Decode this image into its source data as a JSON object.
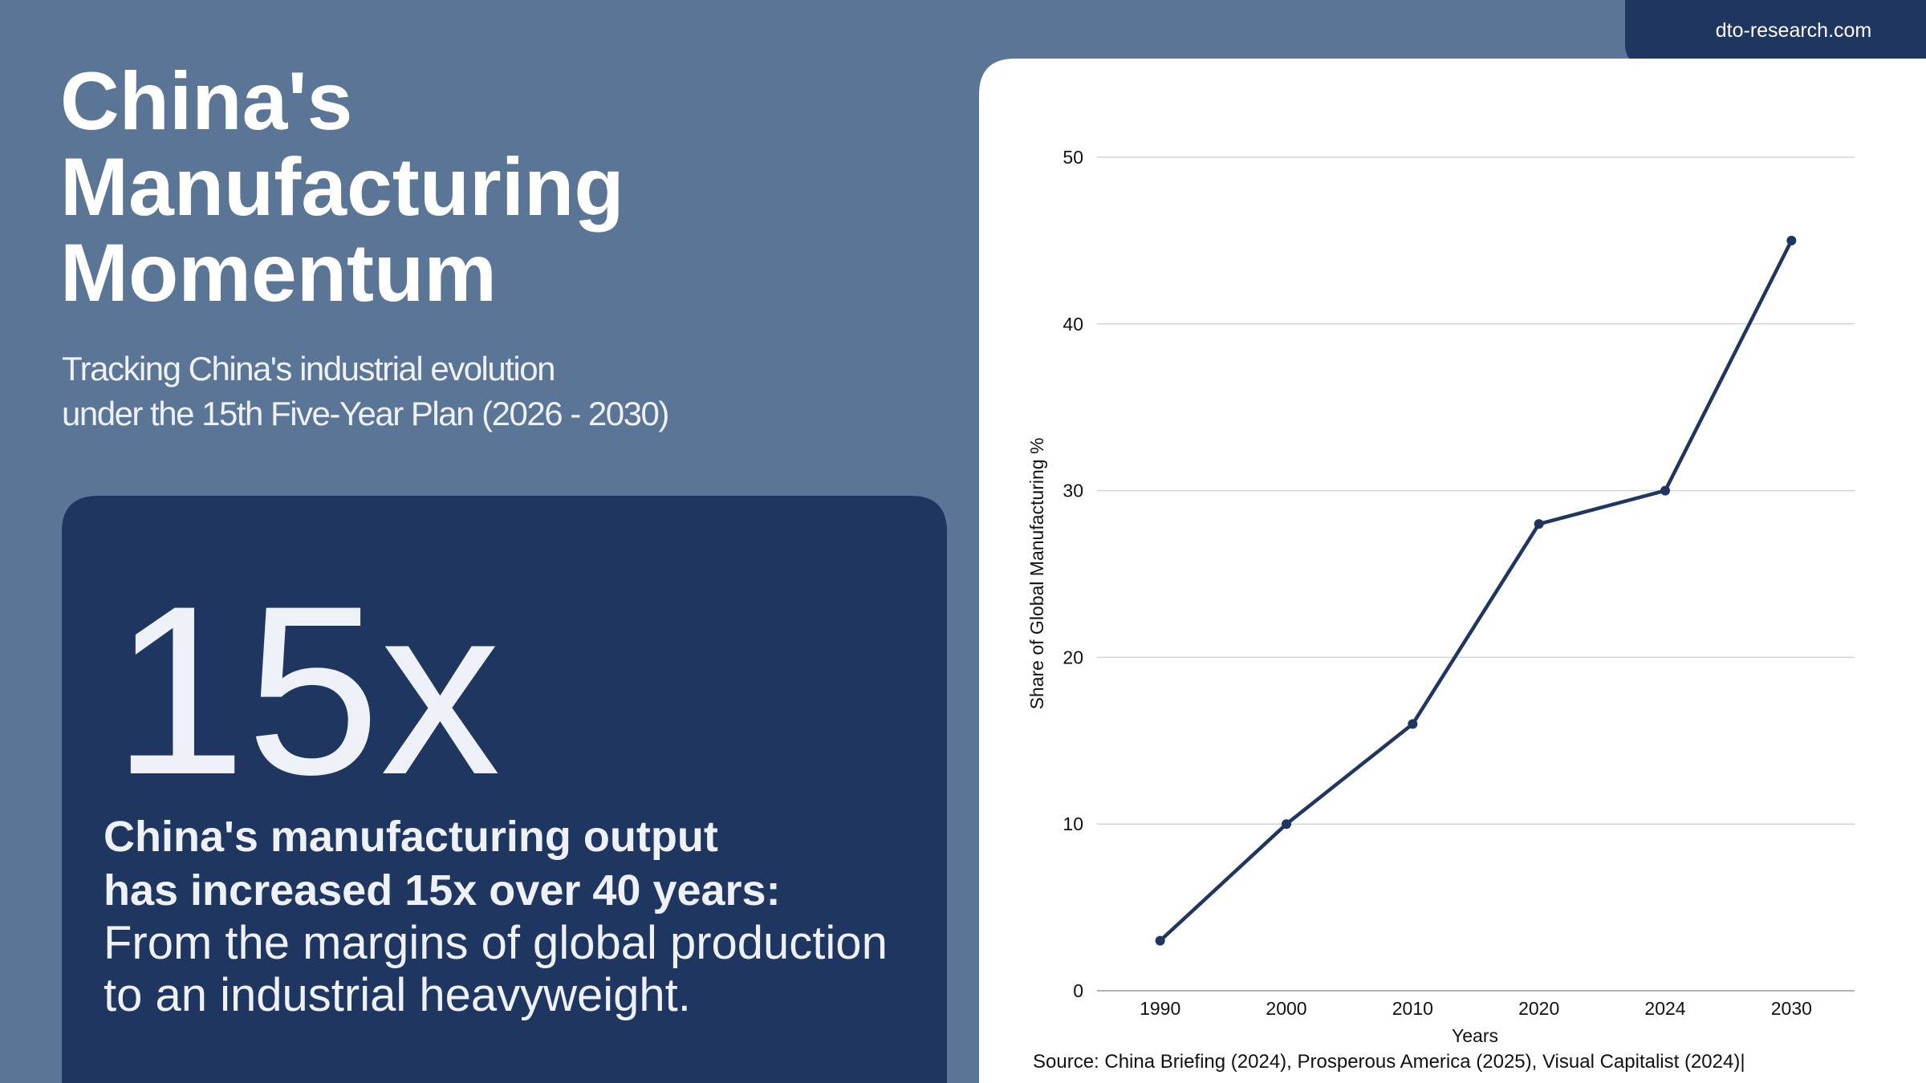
{
  "header": {
    "site": "dto-research.com",
    "title": [
      "China's",
      "Manufacturing",
      "Momentum"
    ],
    "subtitle": [
      "Tracking China's industrial evolution",
      "under  the 15th Five-Year Plan (2026 - 2030)"
    ]
  },
  "highlight": {
    "stat": "15x",
    "headline": [
      "China's manufacturing output",
      "has increased 15x over 40 years:"
    ],
    "body": [
      "From the margins of global production",
      "to an industrial heavyweight."
    ]
  },
  "chart_data": {
    "type": "line",
    "categories": [
      "1990",
      "2000",
      "2010",
      "2020",
      "2024",
      "2030"
    ],
    "series": [
      {
        "name": "Share of Global Manufacturing %",
        "color": "#1f3660",
        "values": [
          3,
          10,
          16,
          28,
          30,
          45
        ]
      }
    ],
    "x_label": "Years",
    "y_label": "Share of Global Manufacturing %",
    "ylim": [
      0,
      50
    ],
    "yticks": [
      0,
      10,
      20,
      30,
      40,
      50
    ],
    "grid": true,
    "source": "Source: China Briefing (2024), Prosperous America (2025), Visual Capitalist (2024)|"
  }
}
